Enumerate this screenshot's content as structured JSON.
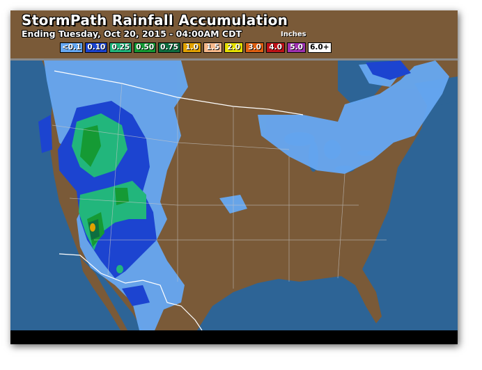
{
  "header": {
    "title": "StormPath Rainfall Accumulation",
    "subtitle": "Ending Tuesday, Oct 20, 2015 - 04:00AM CDT",
    "units": "Inches"
  },
  "legend": [
    {
      "label": "<0.1",
      "color": "#66a8f2"
    },
    {
      "label": "0.10",
      "color": "#1c44d0"
    },
    {
      "label": "0.25",
      "color": "#22b67c"
    },
    {
      "label": "0.50",
      "color": "#159a34"
    },
    {
      "label": "0.75",
      "color": "#0e6e40"
    },
    {
      "label": "1.0",
      "color": "#e2a200"
    },
    {
      "label": "1.5",
      "color": "#f6b88a"
    },
    {
      "label": "2.0",
      "color": "#e6e000"
    },
    {
      "label": "3.0",
      "color": "#e06012"
    },
    {
      "label": "4.0",
      "color": "#bf1218"
    },
    {
      "label": "5.0",
      "color": "#a032b2"
    },
    {
      "label": "6.0+",
      "color": "#ffffff"
    }
  ],
  "colors": {
    "land": "#7a5a38",
    "water": "#2d6496",
    "borders": "#ffffff"
  }
}
